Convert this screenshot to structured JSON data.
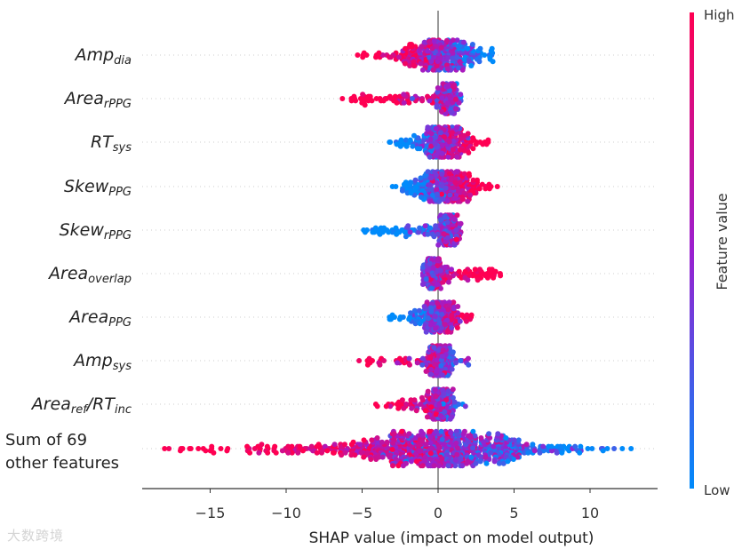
{
  "chart_data": {
    "type": "scatter",
    "subtype": "shap-beeswarm",
    "xlabel": "SHAP value (impact on model output)",
    "xlim": [
      -19.5,
      14.5
    ],
    "xticks": [
      -15,
      -10,
      -5,
      0,
      5,
      10
    ],
    "xtick_labels": [
      "−15",
      "−10",
      "−5",
      "0",
      "5",
      "10"
    ],
    "colorbar": {
      "label": "Feature value",
      "high_label": "High",
      "low_label": "Low",
      "low_color": "#008bfb",
      "mid_color": "#9b1fcf",
      "high_color": "#ff0052"
    },
    "features": [
      {
        "parts": [
          {
            "t": "Amp"
          },
          {
            "t": "dia",
            "sub": true
          }
        ],
        "min": -5.3,
        "max": 3.6,
        "core": [
          -2.0,
          2.2
        ],
        "high_effect": "negative",
        "n": 320
      },
      {
        "parts": [
          {
            "t": "Area"
          },
          {
            "t": "rPPG",
            "sub": true
          }
        ],
        "min": -6.3,
        "max": 1.5,
        "core": [
          0.3,
          1.2
        ],
        "high_effect": "negative",
        "n": 300
      },
      {
        "parts": [
          {
            "t": "RT"
          },
          {
            "t": "sys",
            "sub": true
          }
        ],
        "min": -3.2,
        "max": 3.3,
        "core": [
          -1.2,
          1.8
        ],
        "high_effect": "positive",
        "n": 300
      },
      {
        "parts": [
          {
            "t": "Skew"
          },
          {
            "t": "PPG",
            "sub": true
          }
        ],
        "min": -3.0,
        "max": 3.9,
        "core": [
          -1.2,
          2.0
        ],
        "high_effect": "positive",
        "n": 320
      },
      {
        "parts": [
          {
            "t": "Skew"
          },
          {
            "t": "rPPG",
            "sub": true
          }
        ],
        "min": -4.9,
        "max": 1.5,
        "core": [
          0.2,
          1.2
        ],
        "high_effect": "positive",
        "n": 300
      },
      {
        "parts": [
          {
            "t": "Area"
          },
          {
            "t": "overlap",
            "sub": true
          }
        ],
        "min": -1.0,
        "max": 4.1,
        "core": [
          -0.8,
          0.0
        ],
        "high_effect": "positive",
        "n": 300
      },
      {
        "parts": [
          {
            "t": "Area"
          },
          {
            "t": "PPG",
            "sub": true
          }
        ],
        "min": -3.2,
        "max": 2.2,
        "core": [
          -1.0,
          1.2
        ],
        "high_effect": "positive",
        "n": 300
      },
      {
        "parts": [
          {
            "t": "Amp"
          },
          {
            "t": "sys",
            "sub": true
          }
        ],
        "min": -5.2,
        "max": 2.0,
        "core": [
          -0.5,
          0.8
        ],
        "high_effect": "negative",
        "n": 300
      },
      {
        "parts": [
          {
            "t": "Area"
          },
          {
            "t": "ref",
            "sub": true
          },
          {
            "t": "/RT"
          },
          {
            "t": "inc",
            "sub": true
          }
        ],
        "min": -4.1,
        "max": 1.8,
        "core": [
          -0.4,
          0.8
        ],
        "high_effect": "negative",
        "n": 300
      },
      {
        "parts": [
          {
            "t": "Sum of 69"
          },
          {
            "t": "other features"
          }
        ],
        "plain": true,
        "min": -18.0,
        "max": 12.7,
        "core": [
          -5.5,
          5.5
        ],
        "high_effect": "negative",
        "n": 750
      }
    ]
  },
  "watermark": "大数跨境"
}
